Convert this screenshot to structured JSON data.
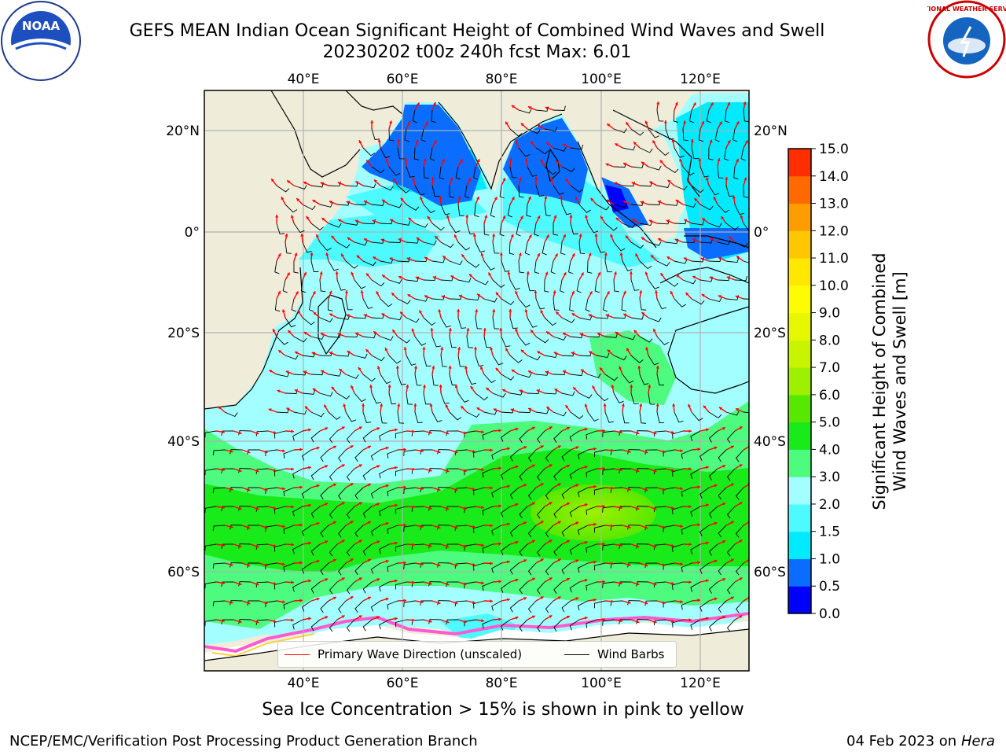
{
  "header": {
    "title_line1": "GEFS MEAN Indian Ocean Significant Height of Combined Wind Waves and Swell",
    "title_line2": "20230202 t00z 240h fcst   Max: 6.01"
  },
  "logos": {
    "left": {
      "icon": "noaa-logo",
      "text": "NOAA"
    },
    "right": {
      "icon": "nws-logo",
      "text": "NATIONAL WEATHER SERVICE"
    }
  },
  "map": {
    "lon_range": [
      20,
      130
    ],
    "lat_range": [
      -75,
      27
    ],
    "lon_ticks": [
      "40°E",
      "60°E",
      "80°E",
      "100°E",
      "120°E"
    ],
    "lat_ticks": [
      "20°N",
      "0°",
      "20°S",
      "40°S",
      "60°S"
    ],
    "colors": {
      "land": "#efedda",
      "grid": "#b0b0b0",
      "coast": "#000000",
      "arrow": "#ff0000",
      "barb": "#000000"
    }
  },
  "colorbar": {
    "label": "Significant Height of Combined Wind Waves and Swell [m]",
    "tick_labels": [
      "0.0",
      "0.5",
      "1.0",
      "1.5",
      "2.0",
      "3.0",
      "4.0",
      "5.0",
      "6.0",
      "7.0",
      "8.0",
      "9.0",
      "10.0",
      "11.0",
      "12.0",
      "13.0",
      "14.0",
      "15.0"
    ],
    "colors": [
      "#0000ff",
      "#0a6dff",
      "#00eaff",
      "#4dfaff",
      "#a3ffff",
      "#4dfb7e",
      "#19ea19",
      "#57e800",
      "#9ff000",
      "#c8f400",
      "#e6f800",
      "#fdfd00",
      "#ffe800",
      "#ffc700",
      "#ff9c00",
      "#ff6a00",
      "#ff2e00"
    ]
  },
  "legend": {
    "wave": {
      "label": "Primary Wave Direction (unscaled)",
      "color": "#ff0000"
    },
    "barb": {
      "label": "Wind Barbs",
      "color": "#000000"
    }
  },
  "caption": "Sea Ice Concentration > 15% is shown in pink to yellow",
  "footer": {
    "left": "NCEP/EMC/Verification Post Processing Product Generation Branch",
    "right_date": "04 Feb 2023 on",
    "right_host": "Hera"
  }
}
